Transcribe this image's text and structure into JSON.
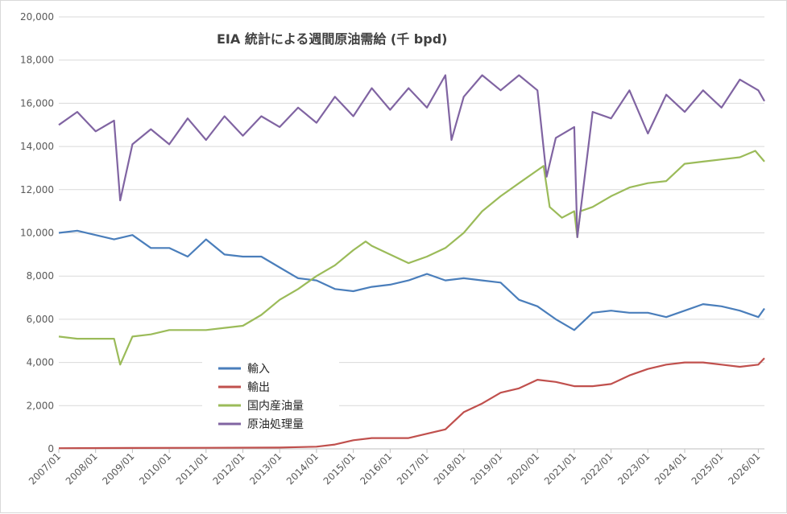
{
  "chart_data": {
    "type": "line",
    "title": "EIA 統計による週間原油需給 (千 bpd)",
    "xlabel": "",
    "ylabel": "",
    "ylim": [
      0,
      20000
    ],
    "y_ticks": [
      0,
      2000,
      4000,
      6000,
      8000,
      10000,
      12000,
      14000,
      16000,
      18000,
      20000
    ],
    "y_tick_labels": [
      "0",
      "2,000",
      "4,000",
      "6,000",
      "8,000",
      "10,000",
      "12,000",
      "14,000",
      "16,000",
      "18,000",
      "20,000"
    ],
    "x_range": [
      "2007-01",
      "2026-03"
    ],
    "x_ticks": [
      "2007/01",
      "2008/01",
      "2009/01",
      "2010/01",
      "2011/01",
      "2012/01",
      "2013/01",
      "2014/01",
      "2015/01",
      "2016/01",
      "2017/01",
      "2018/01",
      "2019/01",
      "2020/01",
      "2021/01",
      "2022/01",
      "2023/01",
      "2024/01",
      "2025/01",
      "2026/01"
    ],
    "grid": "horizontal",
    "legend_position": "lower-left",
    "series": [
      {
        "name": "輸入",
        "color": "#4a7ebb",
        "x": [
          "2007-01",
          "2007-07",
          "2008-01",
          "2008-07",
          "2009-01",
          "2009-07",
          "2010-01",
          "2010-07",
          "2011-01",
          "2011-07",
          "2012-01",
          "2012-07",
          "2013-01",
          "2013-07",
          "2014-01",
          "2014-07",
          "2015-01",
          "2015-07",
          "2016-01",
          "2016-07",
          "2017-01",
          "2017-07",
          "2018-01",
          "2018-07",
          "2019-01",
          "2019-07",
          "2020-01",
          "2020-07",
          "2021-01",
          "2021-07",
          "2022-01",
          "2022-07",
          "2023-01",
          "2023-07",
          "2024-01",
          "2024-07",
          "2025-01",
          "2025-07",
          "2026-01",
          "2026-03"
        ],
        "values": [
          10000,
          10100,
          9900,
          9700,
          9900,
          9300,
          9300,
          8900,
          9700,
          9000,
          8900,
          8900,
          8400,
          7900,
          7800,
          7400,
          7300,
          7500,
          7600,
          7800,
          8100,
          7800,
          7900,
          7800,
          7700,
          6900,
          6600,
          6000,
          5500,
          6300,
          6400,
          6300,
          6300,
          6100,
          6400,
          6700,
          6600,
          6400,
          6100,
          6500
        ]
      },
      {
        "name": "輸出",
        "color": "#c0504d",
        "x": [
          "2007-01",
          "2009-01",
          "2011-01",
          "2013-01",
          "2014-01",
          "2014-07",
          "2015-01",
          "2015-07",
          "2016-01",
          "2016-07",
          "2017-01",
          "2017-07",
          "2018-01",
          "2018-07",
          "2019-01",
          "2019-07",
          "2020-01",
          "2020-07",
          "2021-01",
          "2021-07",
          "2022-01",
          "2022-07",
          "2023-01",
          "2023-07",
          "2024-01",
          "2024-07",
          "2025-01",
          "2025-07",
          "2026-01",
          "2026-03"
        ],
        "values": [
          30,
          40,
          50,
          60,
          100,
          200,
          400,
          500,
          500,
          500,
          700,
          900,
          1700,
          2100,
          2600,
          2800,
          3200,
          3100,
          2900,
          2900,
          3000,
          3400,
          3700,
          3900,
          4000,
          4000,
          3900,
          3800,
          3900,
          4200
        ]
      },
      {
        "name": "国内産油量",
        "color": "#9bbb59",
        "x": [
          "2007-01",
          "2007-07",
          "2008-01",
          "2008-07",
          "2008-09",
          "2009-01",
          "2009-07",
          "2010-01",
          "2010-07",
          "2011-01",
          "2011-07",
          "2012-01",
          "2012-07",
          "2013-01",
          "2013-07",
          "2014-01",
          "2014-07",
          "2015-01",
          "2015-05",
          "2015-07",
          "2016-01",
          "2016-07",
          "2017-01",
          "2017-07",
          "2018-01",
          "2018-07",
          "2019-01",
          "2019-07",
          "2020-01",
          "2020-03",
          "2020-05",
          "2020-09",
          "2021-01",
          "2021-02",
          "2021-03",
          "2021-07",
          "2022-01",
          "2022-07",
          "2023-01",
          "2023-07",
          "2024-01",
          "2024-07",
          "2025-01",
          "2025-07",
          "2025-12",
          "2026-03"
        ],
        "values": [
          5200,
          5100,
          5100,
          5100,
          3900,
          5200,
          5300,
          5500,
          5500,
          5500,
          5600,
          5700,
          6200,
          6900,
          7400,
          8000,
          8500,
          9200,
          9600,
          9400,
          9000,
          8600,
          8900,
          9300,
          10000,
          11000,
          11700,
          12300,
          12900,
          13100,
          11200,
          10700,
          11000,
          9800,
          11000,
          11200,
          11700,
          12100,
          12300,
          12400,
          13200,
          13300,
          13400,
          13500,
          13800,
          13300
        ]
      },
      {
        "name": "原油処理量",
        "color": "#8064a2",
        "x": [
          "2007-01",
          "2007-07",
          "2008-01",
          "2008-07",
          "2008-09",
          "2009-01",
          "2009-07",
          "2010-01",
          "2010-07",
          "2011-01",
          "2011-07",
          "2012-01",
          "2012-07",
          "2013-01",
          "2013-07",
          "2014-01",
          "2014-07",
          "2015-01",
          "2015-07",
          "2016-01",
          "2016-07",
          "2017-01",
          "2017-07",
          "2017-09",
          "2018-01",
          "2018-07",
          "2019-01",
          "2019-07",
          "2020-01",
          "2020-04",
          "2020-07",
          "2021-01",
          "2021-02",
          "2021-07",
          "2022-01",
          "2022-07",
          "2023-01",
          "2023-07",
          "2024-01",
          "2024-07",
          "2025-01",
          "2025-07",
          "2026-01",
          "2026-03"
        ],
        "values": [
          15000,
          15600,
          14700,
          15200,
          11500,
          14100,
          14800,
          14100,
          15300,
          14300,
          15400,
          14500,
          15400,
          14900,
          15800,
          15100,
          16300,
          15400,
          16700,
          15700,
          16700,
          15800,
          17300,
          14300,
          16300,
          17300,
          16600,
          17300,
          16600,
          12600,
          14400,
          14900,
          9800,
          15600,
          15300,
          16600,
          14600,
          16400,
          15600,
          16600,
          15800,
          17100,
          16600,
          16100
        ]
      }
    ]
  }
}
